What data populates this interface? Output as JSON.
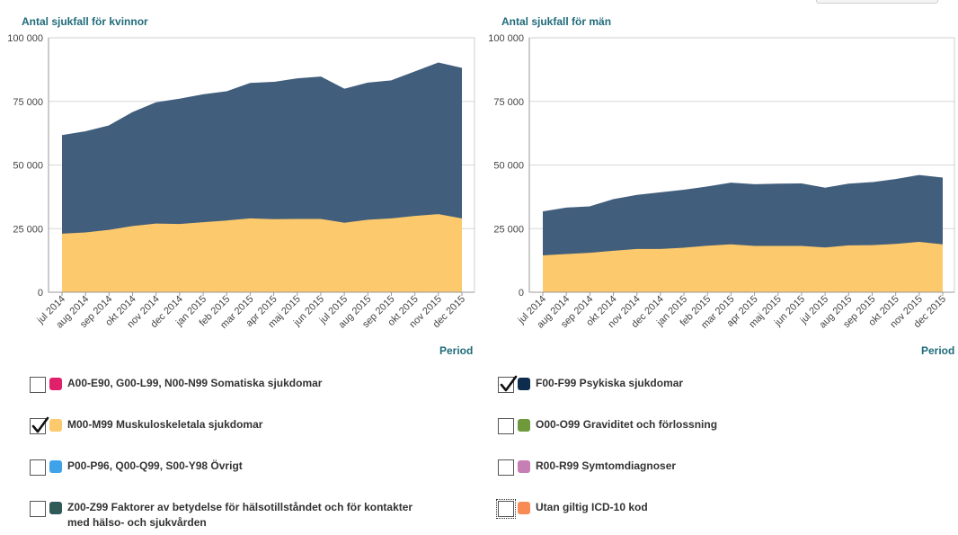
{
  "chart_data": [
    {
      "type": "area",
      "stacked": true,
      "title": "Antal sjukfall för kvinnor",
      "xlabel": "Period",
      "ylabel": "",
      "ylim": [
        0,
        100000
      ],
      "yticks": [
        "0",
        "25 000",
        "50 000",
        "75 000",
        "100 000"
      ],
      "categories": [
        "jul 2014",
        "aug 2014",
        "sep 2014",
        "okt 2014",
        "nov 2014",
        "dec 2014",
        "jan 2015",
        "feb 2015",
        "mar 2015",
        "apr 2015",
        "maj 2015",
        "jun 2015",
        "jul 2015",
        "aug 2015",
        "sep 2015",
        "okt 2015",
        "nov 2015",
        "dec 2015"
      ],
      "series": [
        {
          "name": "M00-M99 Muskuloskeletala sjukdomar",
          "color": "#fdc96d",
          "values": [
            23000,
            23500,
            24500,
            26000,
            27000,
            26800,
            27500,
            28200,
            29000,
            28700,
            28800,
            28800,
            27300,
            28500,
            29000,
            30000,
            30700,
            29000
          ]
        },
        {
          "name": "F00-F99 Psykiska sjukdomar",
          "color": "#415e7c",
          "values": [
            38500,
            39500,
            40800,
            44500,
            47400,
            49000,
            50000,
            50500,
            53000,
            53700,
            55000,
            55700,
            52400,
            53600,
            54000,
            56500,
            59300,
            58900
          ]
        }
      ]
    },
    {
      "type": "area",
      "stacked": true,
      "title": "Antal sjukfall för män",
      "xlabel": "Period",
      "ylabel": "",
      "ylim": [
        0,
        100000
      ],
      "yticks": [
        "0",
        "25 000",
        "50 000",
        "75 000",
        "100 000"
      ],
      "categories": [
        "jul 2014",
        "aug 2014",
        "sep 2014",
        "okt 2014",
        "nov 2014",
        "dec 2014",
        "jan 2015",
        "feb 2015",
        "mar 2015",
        "apr 2015",
        "maj 2015",
        "jun 2015",
        "jul 2015",
        "aug 2015",
        "sep 2015",
        "okt 2015",
        "nov 2015",
        "dec 2015"
      ],
      "series": [
        {
          "name": "M00-M99 Muskuloskeletala sjukdomar",
          "color": "#fdc96d",
          "values": [
            14500,
            15000,
            15500,
            16300,
            17000,
            17000,
            17500,
            18300,
            18800,
            18200,
            18200,
            18200,
            17600,
            18400,
            18500,
            19000,
            19800,
            18800
          ]
        },
        {
          "name": "F00-F99 Psykiska sjukdomar",
          "color": "#415e7c",
          "values": [
            17000,
            18000,
            18000,
            20000,
            21000,
            22000,
            22500,
            23000,
            24000,
            24000,
            24200,
            24300,
            23200,
            24000,
            24500,
            25200,
            26000,
            26000
          ]
        }
      ]
    }
  ],
  "legend": {
    "left": [
      {
        "label": "A00-E90, G00-L99, N00-N99 Somatiska sjukdomar",
        "color": "#e0206a",
        "checked": false
      },
      {
        "label": "M00-M99 Muskuloskeletala sjukdomar",
        "color": "#fdc96d",
        "checked": true
      },
      {
        "label": "P00-P96, Q00-Q99, S00-Y98 Övrigt",
        "color": "#3ea3e8",
        "checked": false
      },
      {
        "label": "Z00-Z99 Faktorer av betydelse för hälsotillståndet och för kontakter med hälso- och sjukvården",
        "color": "#2f5a58",
        "checked": false
      }
    ],
    "right": [
      {
        "label": "F00-F99 Psykiska sjukdomar",
        "color": "#0e2c4d",
        "checked": true
      },
      {
        "label": "O00-O99 Graviditet och förlossning",
        "color": "#6f9a3b",
        "checked": false
      },
      {
        "label": "R00-R99 Symtomdiagnoser",
        "color": "#c67fb4",
        "checked": false
      },
      {
        "label": "Utan giltig ICD-10 kod",
        "color": "#f78a55",
        "checked": false
      }
    ]
  }
}
